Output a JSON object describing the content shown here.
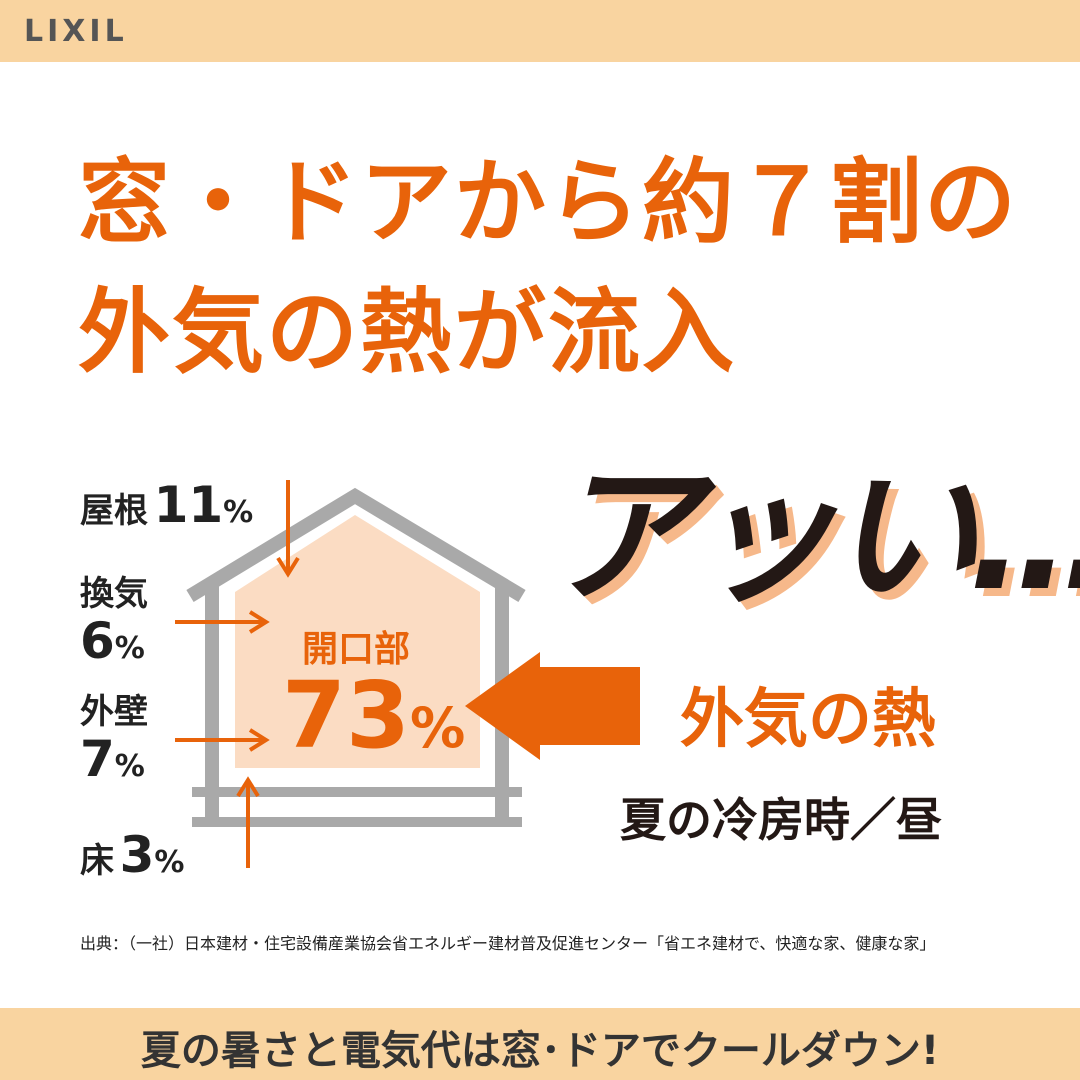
{
  "header": {
    "logo": "LIXIL"
  },
  "headline": [
    "窓・ドアから約７割の",
    "外気の熱が流入"
  ],
  "exclaim": "アッい…",
  "diagram": {
    "parts": [
      {
        "label": "屋根",
        "value": "11%"
      },
      {
        "label": "換気",
        "value": "6%"
      },
      {
        "label": "外壁",
        "value": "7%"
      },
      {
        "label": "床",
        "value": "3%"
      }
    ],
    "opening": {
      "label": "開口部",
      "value": "73%"
    },
    "heat_label": "外気の熱",
    "season": "夏の冷房時／昼"
  },
  "source": "出典：（一社）日本建材・住宅設備産業協会省エネルギー建材普及促進センター「省エネ建材で、快適な家、健康な家」",
  "footer": "夏の暑さと電気代は窓･ドアでクールダウン!"
}
